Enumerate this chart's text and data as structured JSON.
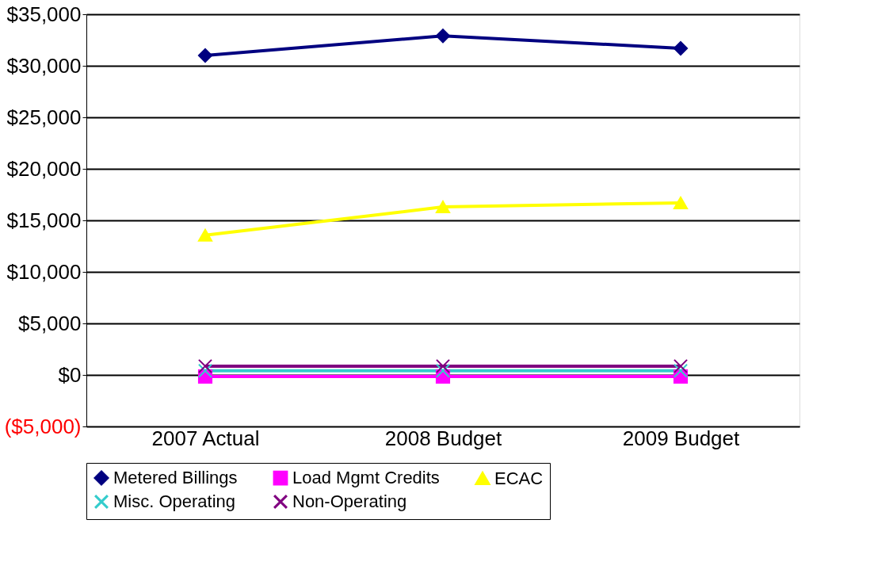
{
  "chart_data": {
    "type": "line",
    "categories": [
      "2007 Actual",
      "2008 Budget",
      "2009 Budget"
    ],
    "series": [
      {
        "name": "Metered Billings",
        "color": "#000080",
        "marker": "diamond",
        "values": [
          31000,
          32900,
          31700
        ]
      },
      {
        "name": "Load Mgmt Credits",
        "color": "#ff00ff",
        "marker": "square",
        "values": [
          -150,
          -150,
          -150
        ]
      },
      {
        "name": "ECAC",
        "color": "#ffff00",
        "marker": "triangle",
        "values": [
          13550,
          16300,
          16700
        ]
      },
      {
        "name": "Misc. Operating",
        "color": "#33cccc",
        "marker": "cross",
        "values": [
          400,
          400,
          400
        ]
      },
      {
        "name": "Non-Operating",
        "color": "#800080",
        "marker": "cross",
        "values": [
          850,
          850,
          850
        ]
      }
    ],
    "ylim": [
      -5000,
      35000
    ],
    "yticks": [
      {
        "value": -5000,
        "label": "($5,000)"
      },
      {
        "value": 0,
        "label": "$0"
      },
      {
        "value": 5000,
        "label": "$5,000"
      },
      {
        "value": 10000,
        "label": "$10,000"
      },
      {
        "value": 15000,
        "label": "$15,000"
      },
      {
        "value": 20000,
        "label": "$20,000"
      },
      {
        "value": 25000,
        "label": "$25,000"
      },
      {
        "value": 30000,
        "label": "$30,000"
      },
      {
        "value": 35000,
        "label": "$35,000"
      }
    ],
    "grid": "y",
    "legend": "bottom",
    "line_style": "solid"
  }
}
